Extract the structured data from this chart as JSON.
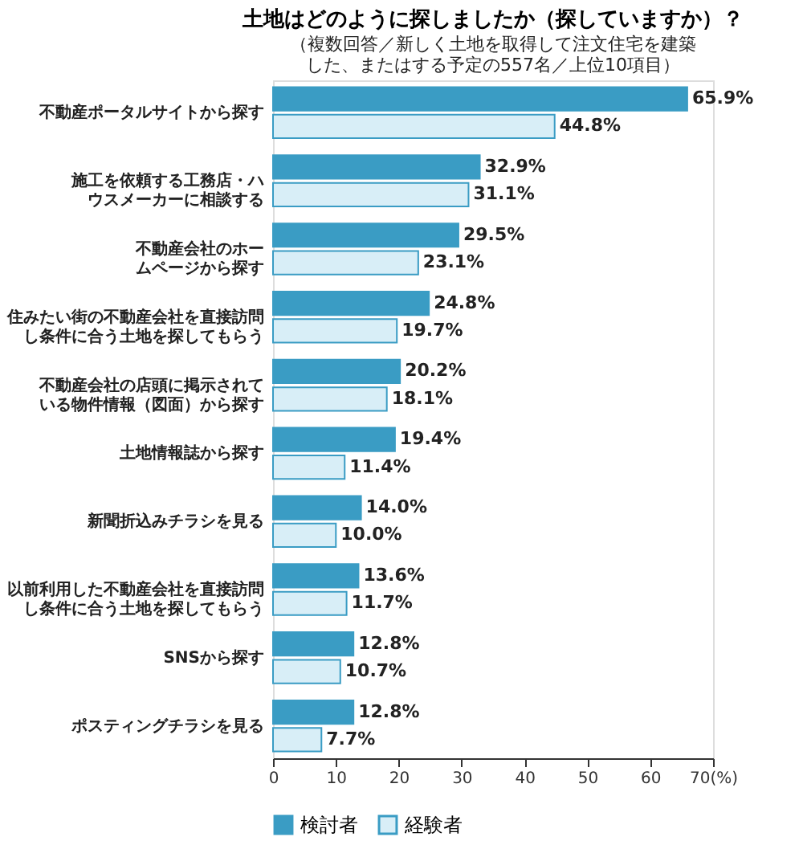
{
  "chart_data": {
    "type": "bar",
    "orientation": "horizontal",
    "title": "土地はどのように探しましたか（探していますか）？",
    "subtitle": "（複数回答／新しく土地を取得して注文住宅を建築した、またはする予定の557名／上位10項目）",
    "categories": [
      "不動産ポータルサイトから探す",
      "施工を依頼する工務店・ハウスメーカーに相談する",
      "不動産会社のホームページから探す",
      "住みたい街の不動産会社を直接訪問し条件に合う土地を探してもらう",
      "不動産会社の店頭に掲示されている物件情報（図面）から探す",
      "土地情報誌から探す",
      "新聞折込みチラシを見る",
      "以前利用した不動産会社を直接訪問し条件に合う土地を探してもらう",
      "SNSから探す",
      "ポスティングチラシを見る"
    ],
    "series": [
      {
        "name": "検討者",
        "color": "#3a9cc4",
        "values": [
          65.9,
          32.9,
          29.5,
          24.8,
          20.2,
          19.4,
          14.0,
          13.6,
          12.8,
          12.8
        ],
        "value_labels": [
          "65.9%",
          "32.9%",
          "29.5%",
          "24.8%",
          "20.2%",
          "19.4%",
          "14.0%",
          "13.6%",
          "12.8%",
          "12.8%"
        ]
      },
      {
        "name": "経験者",
        "color": "#d8eef7",
        "values": [
          44.8,
          31.1,
          23.1,
          19.7,
          18.1,
          11.4,
          10.0,
          11.7,
          10.7,
          7.7
        ],
        "value_labels": [
          "44.8%",
          "31.1%",
          "23.1%",
          "19.7%",
          "18.1%",
          "11.4%",
          "10.0%",
          "11.7%",
          "10.7%",
          "7.7%"
        ]
      }
    ],
    "xlim": [
      0,
      70
    ],
    "xticks": [
      0,
      10,
      20,
      30,
      40,
      50,
      60,
      {
        "value": 70,
        "label": "70(%)"
      }
    ],
    "grid": false,
    "legend": "bottom"
  }
}
